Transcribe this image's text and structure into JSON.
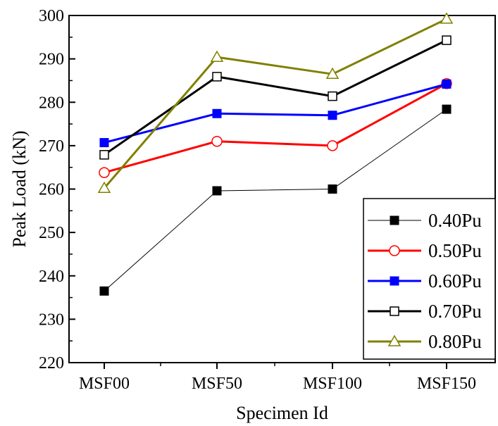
{
  "chart_data": {
    "type": "line",
    "title": "",
    "xlabel": "Specimen Id",
    "ylabel": "Peak Load (kN)",
    "categories": [
      "MSF00",
      "MSF50",
      "MSF100",
      "MSF150"
    ],
    "ylim": [
      220,
      300
    ],
    "yticks": [
      220,
      230,
      240,
      250,
      260,
      270,
      280,
      290,
      300
    ],
    "grid": false,
    "legend_position": "bottom-right",
    "series": [
      {
        "name": "0.40Pu",
        "color": "#000000",
        "marker": "filled-square",
        "values": [
          236.5,
          259.6,
          260.0,
          278.4
        ]
      },
      {
        "name": "0.50Pu",
        "color": "#ff0000",
        "marker": "open-circle",
        "values": [
          263.8,
          271.0,
          270.0,
          284.3
        ]
      },
      {
        "name": "0.60Pu",
        "color": "#0000ff",
        "marker": "filled-square",
        "values": [
          270.7,
          277.4,
          277.0,
          284.2
        ]
      },
      {
        "name": "0.70Pu",
        "color": "#000000",
        "marker": "open-square",
        "values": [
          267.9,
          285.9,
          281.4,
          294.3
        ]
      },
      {
        "name": "0.80Pu",
        "color": "#808000",
        "marker": "open-triangle",
        "values": [
          260.2,
          290.4,
          286.5,
          299.2
        ]
      }
    ]
  }
}
